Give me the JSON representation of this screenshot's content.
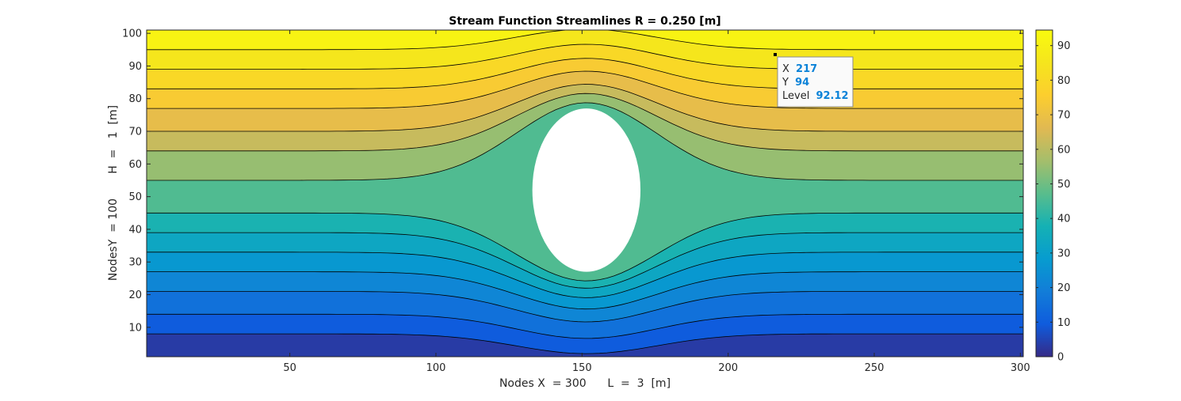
{
  "chart_data": {
    "type": "contour",
    "title": "Stream Function Streamlines R = 0.250 [m]",
    "xlabel": "Nodes X  = 300      L  =  3  [m]",
    "ylabel": "NodesY  = 100       H  =   1  [m]",
    "xlim": [
      1,
      301
    ],
    "ylim": [
      1,
      101
    ],
    "xticks": [
      50,
      100,
      150,
      200,
      250,
      300
    ],
    "yticks": [
      10,
      20,
      30,
      40,
      50,
      60,
      70,
      80,
      90,
      100
    ],
    "colorbar": {
      "limits": [
        0,
        94.5
      ],
      "ticks": [
        0,
        10,
        20,
        30,
        40,
        50,
        60,
        70,
        80,
        90
      ]
    },
    "colormap": "parula",
    "obstacle": {
      "center_x": 151.5,
      "center_y": 52,
      "radius_x": 25,
      "radius_y": 25,
      "shape": "circle",
      "fill": "#ffffff"
    },
    "levels": [
      7.67,
      15.38,
      23.08,
      30.77,
      38.46,
      46.15,
      53.85,
      61.54,
      69.23,
      76.92,
      84.62,
      92.12
    ],
    "far_field_y": [
      8,
      14,
      21,
      27,
      33,
      39,
      45,
      55,
      64,
      70,
      77,
      83,
      89,
      95
    ],
    "grid": false
  },
  "datatip": {
    "x_label": "X",
    "x_value": "217",
    "y_label": "Y",
    "y_value": "94",
    "level_label": "Level",
    "level_value": "92.12",
    "point_x": 217,
    "point_y": 94
  },
  "colors": {
    "accent": "#0072BD",
    "tip_value": "#0a82d8",
    "tip_border": "#7f7f7f"
  }
}
